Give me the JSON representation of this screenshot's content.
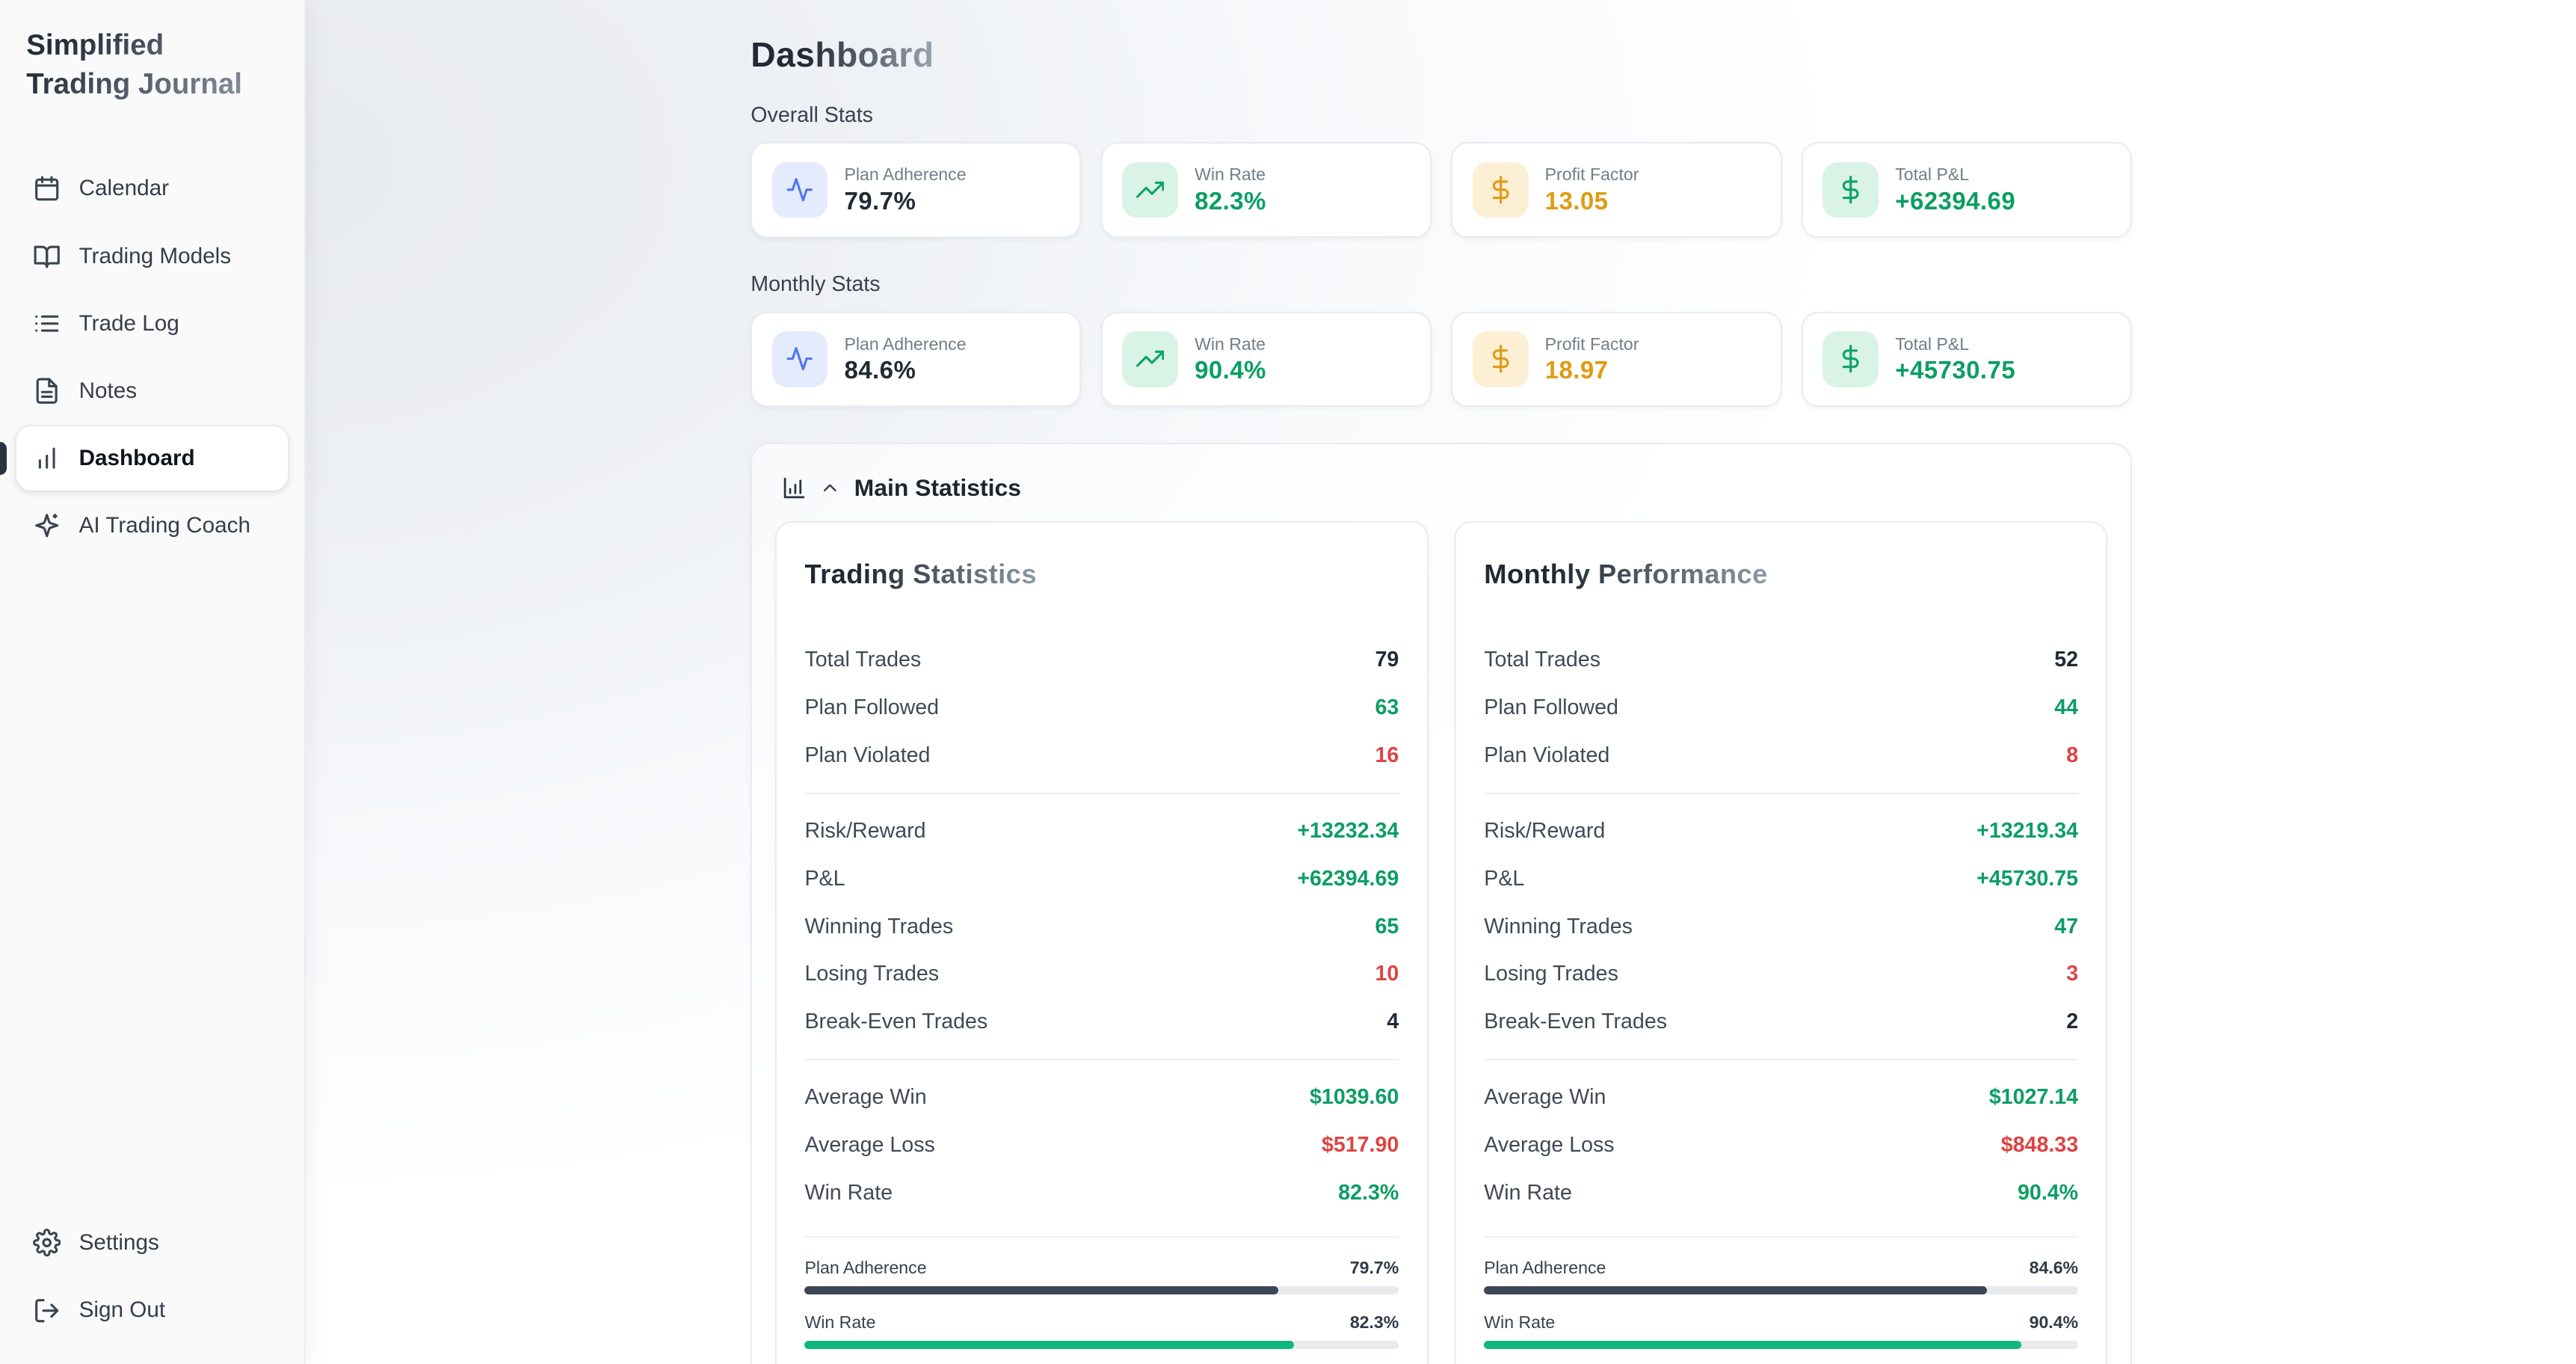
{
  "colors": {
    "green": "#0b9e63",
    "red": "#df4343",
    "amber": "#e09b14",
    "dark_text": "#222a35",
    "progress_dark": "#3d4655",
    "progress_green": "#10b77c",
    "icon_blue_bg": "#e4ebfc",
    "icon_green_bg": "#d9f3e6",
    "icon_amber_bg": "#fcefd4"
  },
  "app": {
    "title": "Simplified Trading Journal"
  },
  "sidebar": {
    "items": [
      {
        "label": "Calendar",
        "icon": "calendar-icon",
        "active": false
      },
      {
        "label": "Trading Models",
        "icon": "book-icon",
        "active": false
      },
      {
        "label": "Trade Log",
        "icon": "list-icon",
        "active": false
      },
      {
        "label": "Notes",
        "icon": "notes-icon",
        "active": false
      },
      {
        "label": "Dashboard",
        "icon": "bar-chart-icon",
        "active": true
      },
      {
        "label": "AI Trading Coach",
        "icon": "sparkles-icon",
        "active": false
      }
    ],
    "footer_items": [
      {
        "label": "Settings",
        "icon": "gear-icon"
      },
      {
        "label": "Sign Out",
        "icon": "logout-icon"
      }
    ]
  },
  "header": {
    "title": "Dashboard"
  },
  "stats_sections": [
    {
      "title": "Overall Stats",
      "cards": [
        {
          "label": "Plan Adherence",
          "value": "79.7%",
          "icon": "activity-icon"
        },
        {
          "label": "Win Rate",
          "value": "82.3%",
          "icon": "trending-up-icon"
        },
        {
          "label": "Profit Factor",
          "value": "13.05",
          "icon": "dollar-icon"
        },
        {
          "label": "Total P&L",
          "value": "+62394.69",
          "icon": "dollar-icon"
        }
      ]
    },
    {
      "title": "Monthly Stats",
      "cards": [
        {
          "label": "Plan Adherence",
          "value": "84.6%",
          "icon": "activity-icon"
        },
        {
          "label": "Win Rate",
          "value": "90.4%",
          "icon": "trending-up-icon"
        },
        {
          "label": "Profit Factor",
          "value": "18.97",
          "icon": "dollar-icon"
        },
        {
          "label": "Total P&L",
          "value": "+45730.75",
          "icon": "dollar-icon"
        }
      ]
    }
  ],
  "main_statistics": {
    "title": "Main Statistics",
    "icon": "bar-chart-icon",
    "collapse_icon": "chevron-up-icon",
    "cards": [
      {
        "title": "Trading Statistics",
        "groups": [
          [
            {
              "label": "Total Trades",
              "value": "79"
            },
            {
              "label": "Plan Followed",
              "value": "63"
            },
            {
              "label": "Plan Violated",
              "value": "16"
            }
          ],
          [
            {
              "label": "Risk/Reward",
              "value": "+13232.34"
            },
            {
              "label": "P&L",
              "value": "+62394.69"
            },
            {
              "label": "Winning Trades",
              "value": "65"
            },
            {
              "label": "Losing Trades",
              "value": "10"
            },
            {
              "label": "Break-Even Trades",
              "value": "4"
            }
          ],
          [
            {
              "label": "Average Win",
              "value": "$1039.60"
            },
            {
              "label": "Average Loss",
              "value": "$517.90"
            },
            {
              "label": "Win Rate",
              "value": "82.3%"
            }
          ]
        ],
        "progress": [
          {
            "label": "Plan Adherence",
            "value": "79.7%",
            "percent": 79.7
          },
          {
            "label": "Win Rate",
            "value": "82.3%",
            "percent": 82.3
          }
        ]
      },
      {
        "title": "Monthly Performance",
        "groups": [
          [
            {
              "label": "Total Trades",
              "value": "52"
            },
            {
              "label": "Plan Followed",
              "value": "44"
            },
            {
              "label": "Plan Violated",
              "value": "8"
            }
          ],
          [
            {
              "label": "Risk/Reward",
              "value": "+13219.34"
            },
            {
              "label": "P&L",
              "value": "+45730.75"
            },
            {
              "label": "Winning Trades",
              "value": "47"
            },
            {
              "label": "Losing Trades",
              "value": "3"
            },
            {
              "label": "Break-Even Trades",
              "value": "2"
            }
          ],
          [
            {
              "label": "Average Win",
              "value": "$1027.14"
            },
            {
              "label": "Average Loss",
              "value": "$848.33"
            },
            {
              "label": "Win Rate",
              "value": "90.4%"
            }
          ]
        ],
        "progress": [
          {
            "label": "Plan Adherence",
            "value": "84.6%",
            "percent": 84.6
          },
          {
            "label": "Win Rate",
            "value": "90.4%",
            "percent": 90.4
          }
        ]
      }
    ]
  }
}
